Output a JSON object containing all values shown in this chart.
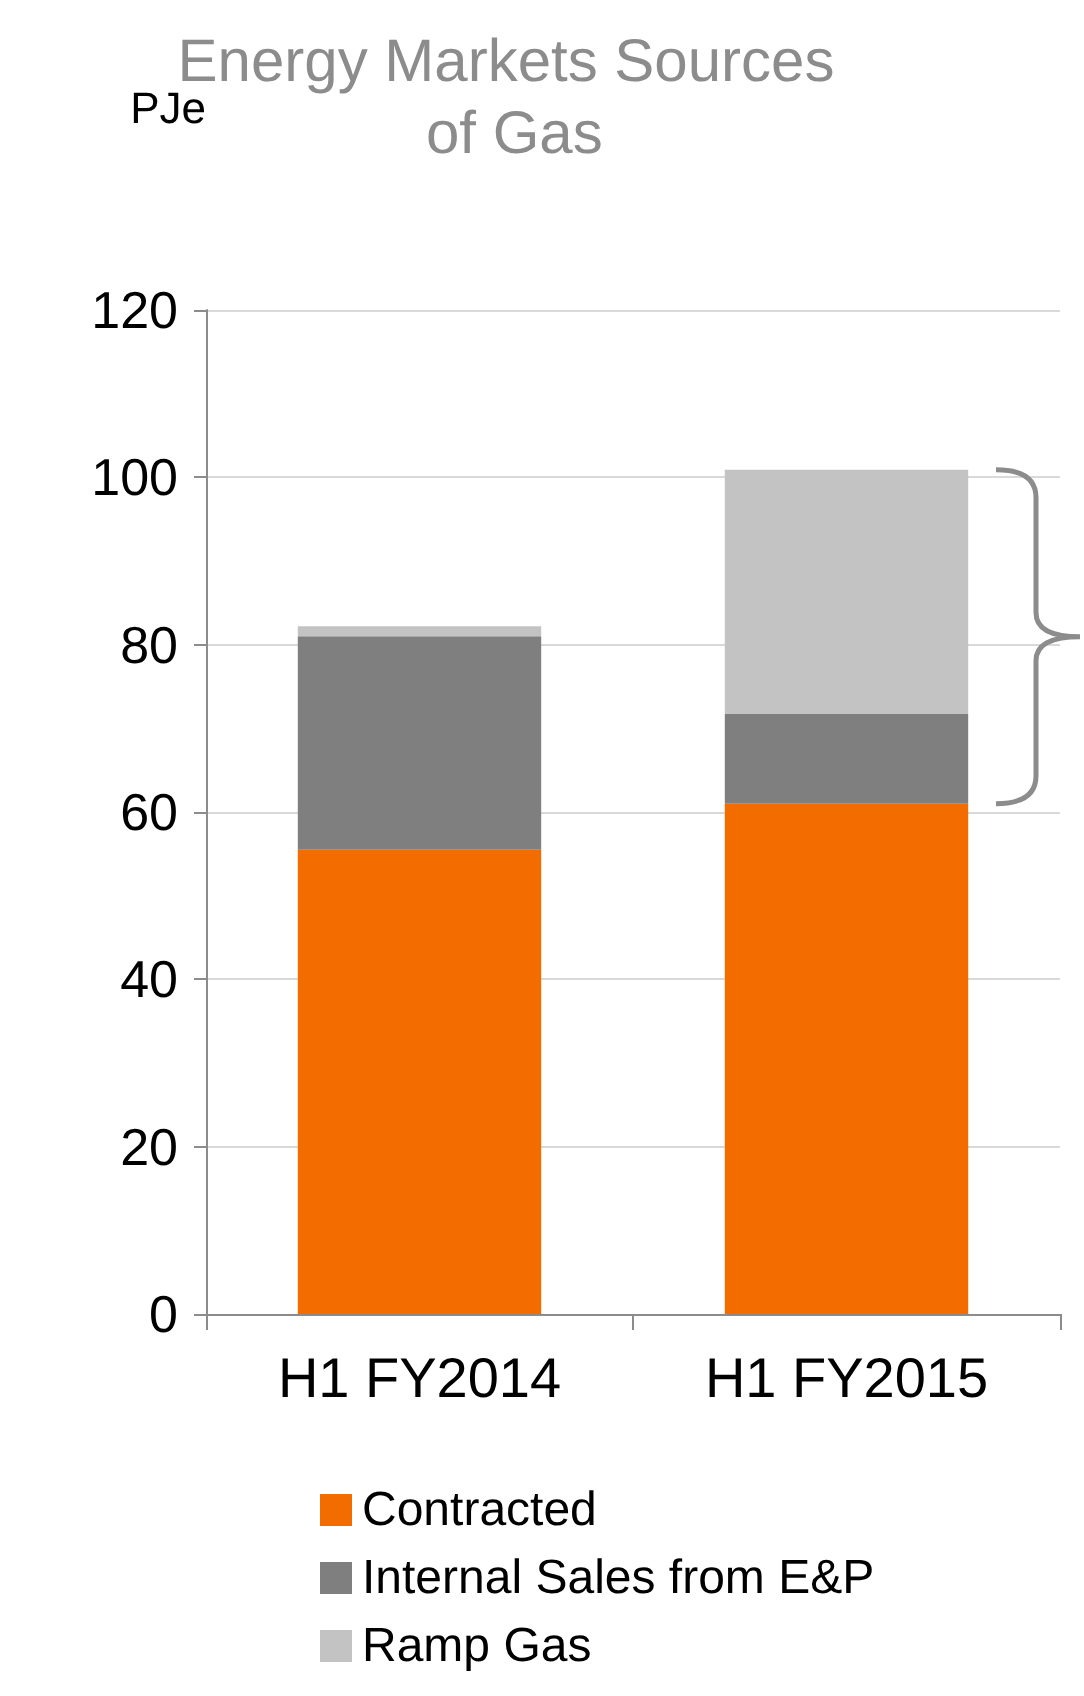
{
  "chart_data": {
    "type": "bar",
    "title": "Energy Markets Sources of Gas",
    "ylabel": "PJe",
    "categories": [
      "H1 FY2014",
      "H1 FY2015"
    ],
    "stacked": true,
    "series": [
      {
        "name": "Contracted",
        "color": "#f26c00",
        "values": [
          55.5,
          61
        ]
      },
      {
        "name": "Internal Sales from E&P",
        "color": "#7f7f7f",
        "values": [
          25.5,
          10.7
        ]
      },
      {
        "name": "Ramp Gas",
        "color": "#c3c3c3",
        "values": [
          1.2,
          29.2
        ]
      }
    ],
    "ylim": [
      0,
      120
    ],
    "yticks": [
      0,
      20,
      40,
      60,
      80,
      100,
      120
    ],
    "grid": "y",
    "legend": "bottom"
  }
}
